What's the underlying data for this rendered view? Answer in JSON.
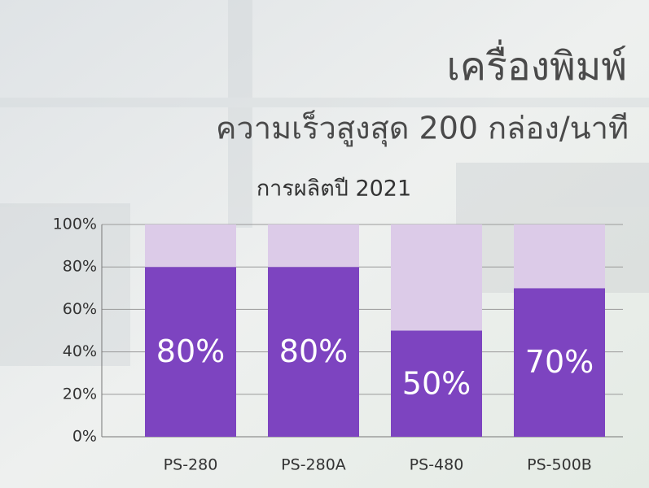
{
  "chart_data": {
    "type": "stacked_bar",
    "title": "เครื่องพิมพ์",
    "subtitle": "ความเร็วสูงสุด 200 กล่อง/นาที",
    "period_label": "การผลิตปี 2021",
    "categories": [
      "PS-280",
      "PS-280A",
      "PS-480",
      "PS-500B"
    ],
    "series": [
      {
        "color": "#7d44c0",
        "values": [
          80,
          80,
          50,
          70
        ],
        "value_labels": [
          "80%",
          "80%",
          "50%",
          "70%"
        ]
      },
      {
        "color": "#dccbe8",
        "values": [
          20,
          20,
          50,
          30
        ]
      }
    ],
    "ylim": [
      0,
      100
    ],
    "yticks": [
      {
        "value": 0,
        "label": "0%"
      },
      {
        "value": 20,
        "label": "20%"
      },
      {
        "value": 40,
        "label": "40%"
      },
      {
        "value": 60,
        "label": "60%"
      },
      {
        "value": 80,
        "label": "80%"
      },
      {
        "value": 100,
        "label": "100%"
      }
    ],
    "grid": true
  }
}
